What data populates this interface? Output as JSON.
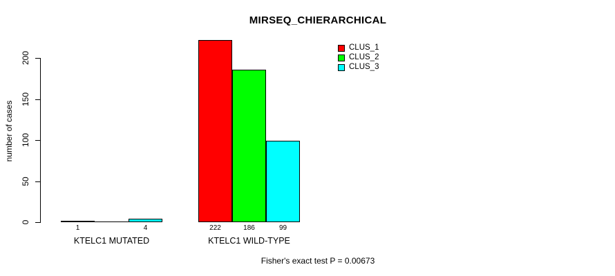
{
  "chart_data": {
    "type": "bar",
    "title": "MIRSEQ_CHIERARCHICAL",
    "ylabel": "number of cases",
    "xlabel": "",
    "ylim": [
      0,
      200
    ],
    "yticks": [
      0,
      50,
      100,
      150,
      200
    ],
    "grid": false,
    "legend_position": "top-right-inside",
    "categories": [
      "KTELC1 MUTATED",
      "KTELC1 WILD-TYPE"
    ],
    "series": [
      {
        "name": "CLUS_1",
        "color": "#ff0000",
        "values": [
          1,
          222
        ]
      },
      {
        "name": "CLUS_2",
        "color": "#00ff00",
        "values": [
          0,
          186
        ]
      },
      {
        "name": "CLUS_3",
        "color": "#00ffff",
        "values": [
          4,
          99
        ]
      }
    ],
    "bar_value_labels": [
      [
        "1",
        "",
        "4"
      ],
      [
        "222",
        "186",
        "99"
      ]
    ],
    "annotation": "Fisher's exact test P = 0.00673",
    "bar_border_color": "#000000",
    "axis_color": "#000000",
    "background_color": "#ffffff"
  }
}
